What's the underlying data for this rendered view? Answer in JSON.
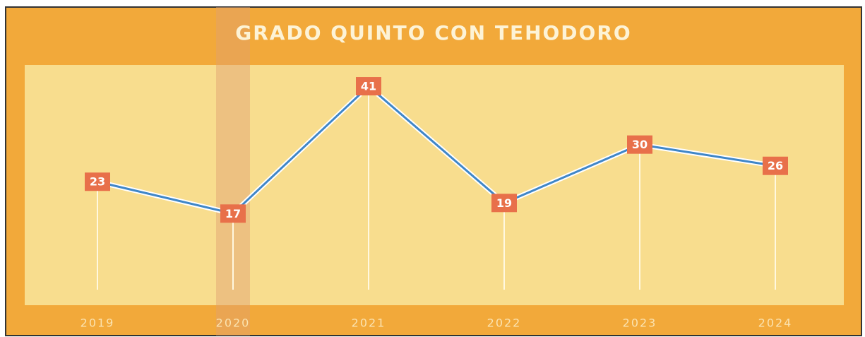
{
  "chart_data": {
    "type": "line",
    "title": "GRADO QUINTO CON TEHODORO",
    "categories": [
      "2019",
      "2020",
      "2021",
      "2022",
      "2023",
      "2024"
    ],
    "values": [
      23,
      17,
      41,
      19,
      30,
      26
    ],
    "color": "#3f86c8",
    "label_color": "#e8704a",
    "ylim": [
      0,
      45
    ]
  }
}
